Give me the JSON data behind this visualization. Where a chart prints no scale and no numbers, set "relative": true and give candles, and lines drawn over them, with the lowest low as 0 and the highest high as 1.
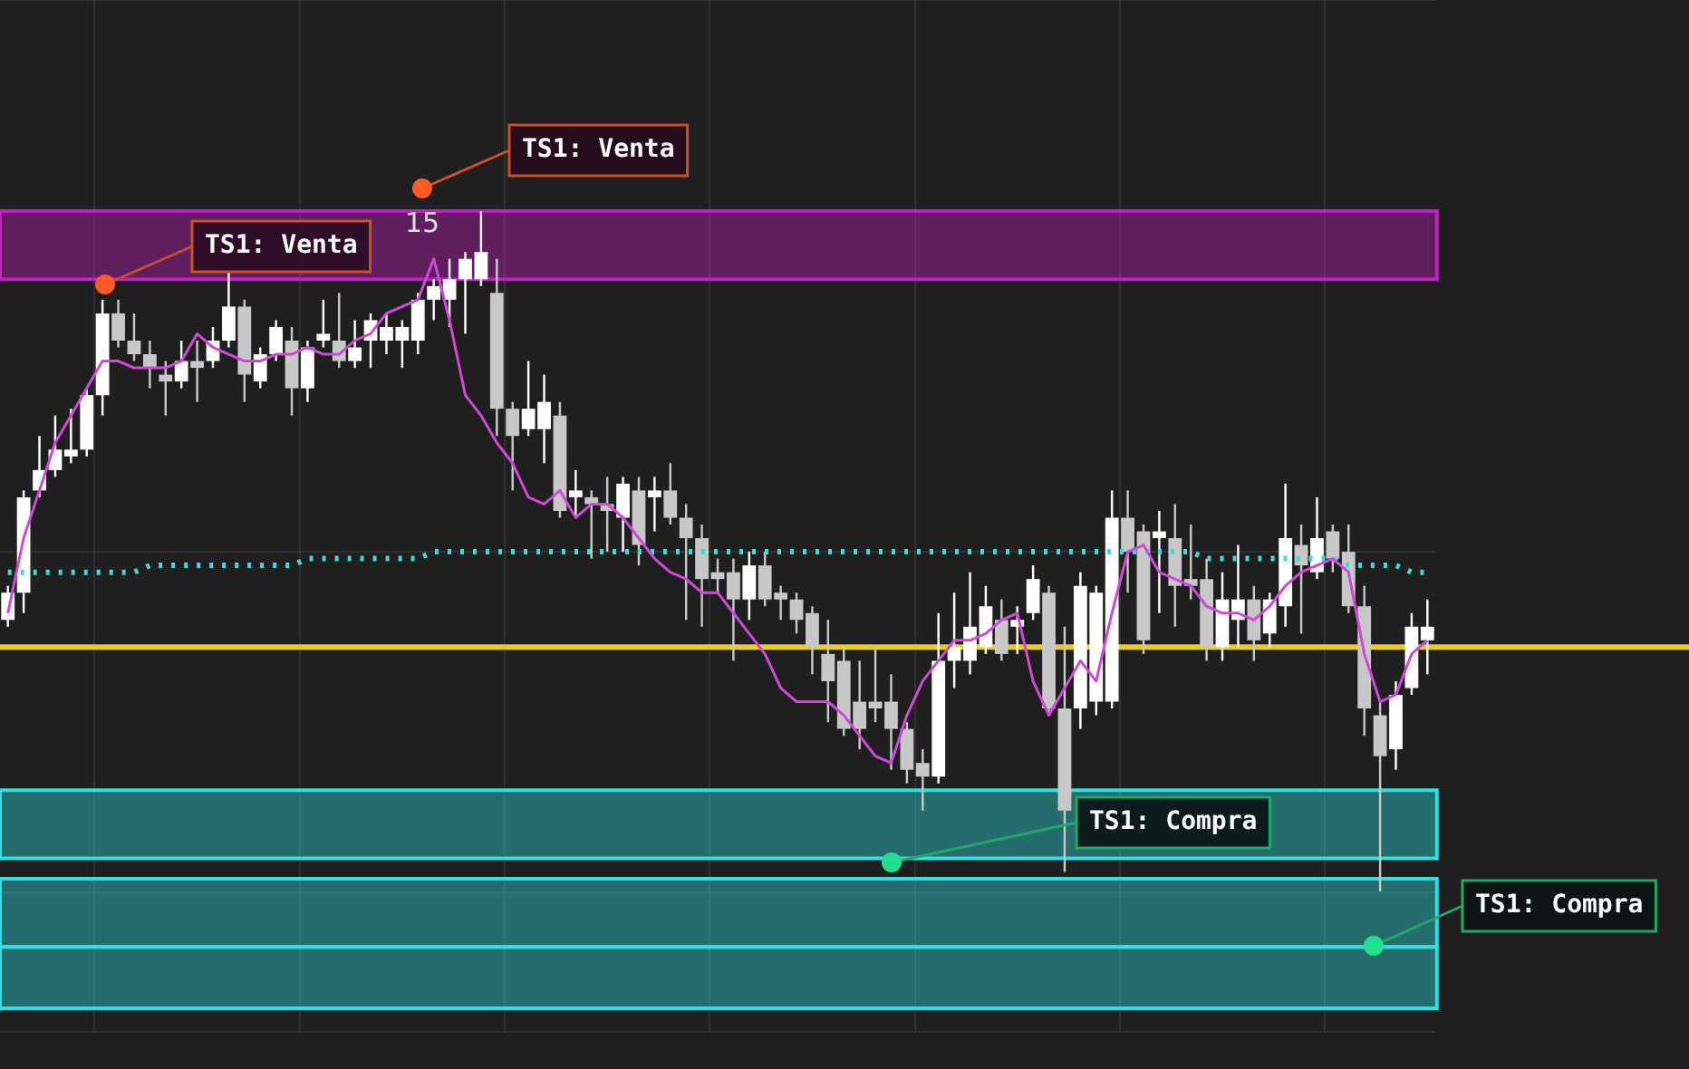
{
  "chart_data": {
    "type": "candlestick",
    "relative": true,
    "colors": [
      "#ffffff",
      "#ffffff",
      "#ffffff",
      "#ffffff",
      "#ffffff",
      "#ffffff",
      "#ffffff",
      "#c8c8c8",
      "#c8c8c8",
      "#c8c8c8",
      "#c8c8c8",
      "#ffffff",
      "#c8c8c8",
      "#ffffff",
      "#ffffff",
      "#c8c8c8",
      "#ffffff",
      "#ffffff",
      "#c8c8c8",
      "#ffffff",
      "#ffffff",
      "#c8c8c8",
      "#ffffff",
      "#ffffff",
      "#ffffff",
      "#ffffff",
      "#ffffff",
      "#ffffff",
      "#ffffff",
      "#ffffff",
      "#ffffff",
      "#c8c8c8",
      "#c8c8c8",
      "#ffffff",
      "#ffffff",
      "#c8c8c8",
      "#ffffff",
      "#c8c8c8",
      "#c8c8c8",
      "#ffffff",
      "#c8c8c8",
      "#ffffff",
      "#c8c8c8",
      "#c8c8c8",
      "#c8c8c8",
      "#c8c8c8",
      "#c8c8c8",
      "#ffffff",
      "#c8c8c8",
      "#c8c8c8",
      "#c8c8c8",
      "#c8c8c8",
      "#c8c8c8",
      "#c8c8c8",
      "#c8c8c8",
      "#c8c8c8",
      "#c8c8c8",
      "#c8c8c8",
      "#c8c8c8",
      "#ffffff",
      "#ffffff",
      "#ffffff",
      "#ffffff",
      "#c8c8c8",
      "#ffffff",
      "#ffffff",
      "#c8c8c8",
      "#c8c8c8",
      "#ffffff",
      "#ffffff",
      "#ffffff",
      "#c8c8c8",
      "#c8c8c8",
      "#ffffff",
      "#c8c8c8",
      "#c8c8c8",
      "#c8c8c8",
      "#ffffff",
      "#ffffff",
      "#c8c8c8",
      "#ffffff",
      "#ffffff",
      "#c8c8c8",
      "#ffffff",
      "#c8c8c8",
      "#c8c8c8",
      "#c8c8c8",
      "#c8c8c8",
      "#ffffff",
      "#ffffff",
      "#ffffff"
    ],
    "categories": [
      null,
      null,
      null,
      null,
      null,
      null,
      null,
      null,
      null,
      null,
      null,
      null,
      null,
      null,
      null,
      null,
      null,
      null,
      null,
      null,
      null,
      null,
      null,
      null,
      null,
      null,
      null,
      null,
      null,
      null,
      null,
      null,
      null,
      null,
      null,
      null,
      null,
      null,
      null,
      null,
      null,
      null,
      null,
      null,
      null,
      null,
      null,
      null,
      null,
      null,
      null,
      null,
      null,
      null,
      null,
      null,
      null,
      null,
      null,
      null,
      null,
      null,
      null,
      null,
      null,
      null,
      null,
      null,
      null,
      null,
      null,
      null,
      null,
      null,
      null,
      null,
      null,
      null,
      null,
      null,
      null,
      null,
      null,
      null,
      null,
      null,
      null,
      null,
      null,
      null,
      null
    ],
    "ohlc": [
      [
        0.4,
        0.45,
        0.39,
        0.44
      ],
      [
        0.44,
        0.59,
        0.41,
        0.58
      ],
      [
        0.59,
        0.67,
        0.58,
        0.62
      ],
      [
        0.62,
        0.7,
        0.61,
        0.65
      ],
      [
        0.64,
        0.71,
        0.63,
        0.65
      ],
      [
        0.65,
        0.74,
        0.64,
        0.73
      ],
      [
        0.73,
        0.87,
        0.7,
        0.85
      ],
      [
        0.85,
        0.87,
        0.8,
        0.81
      ],
      [
        0.81,
        0.85,
        0.78,
        0.79
      ],
      [
        0.79,
        0.81,
        0.74,
        0.77
      ],
      [
        0.76,
        0.78,
        0.7,
        0.75
      ],
      [
        0.75,
        0.81,
        0.74,
        0.78
      ],
      [
        0.78,
        0.81,
        0.72,
        0.77
      ],
      [
        0.78,
        0.83,
        0.77,
        0.81
      ],
      [
        0.81,
        0.91,
        0.8,
        0.86
      ],
      [
        0.86,
        0.87,
        0.72,
        0.76
      ],
      [
        0.75,
        0.8,
        0.74,
        0.79
      ],
      [
        0.79,
        0.84,
        0.78,
        0.83
      ],
      [
        0.81,
        0.83,
        0.7,
        0.74
      ],
      [
        0.74,
        0.81,
        0.72,
        0.8
      ],
      [
        0.81,
        0.87,
        0.8,
        0.82
      ],
      [
        0.81,
        0.88,
        0.77,
        0.78
      ],
      [
        0.78,
        0.84,
        0.77,
        0.8
      ],
      [
        0.81,
        0.85,
        0.77,
        0.84
      ],
      [
        0.81,
        0.85,
        0.79,
        0.83
      ],
      [
        0.81,
        0.84,
        0.77,
        0.83
      ],
      [
        0.81,
        0.88,
        0.79,
        0.87
      ],
      [
        0.87,
        0.9,
        0.84,
        0.89
      ],
      [
        0.87,
        0.93,
        0.83,
        0.9
      ],
      [
        0.9,
        0.94,
        0.82,
        0.93
      ],
      [
        0.9,
        1,
        0.89,
        0.94
      ],
      [
        0.88,
        0.93,
        0.67,
        0.71
      ],
      [
        0.71,
        0.72,
        0.59,
        0.67
      ],
      [
        0.68,
        0.78,
        0.67,
        0.71
      ],
      [
        0.68,
        0.76,
        0.63,
        0.72
      ],
      [
        0.7,
        0.72,
        0.55,
        0.56
      ],
      [
        0.58,
        0.62,
        0.55,
        0.59
      ],
      [
        0.58,
        0.59,
        0.49,
        0.57
      ],
      [
        0.57,
        0.61,
        0.5,
        0.56
      ],
      [
        0.55,
        0.61,
        0.5,
        0.6
      ],
      [
        0.59,
        0.61,
        0.48,
        0.51
      ],
      [
        0.58,
        0.61,
        0.53,
        0.59
      ],
      [
        0.59,
        0.63,
        0.54,
        0.55
      ],
      [
        0.55,
        0.57,
        0.4,
        0.52
      ],
      [
        0.52,
        0.54,
        0.39,
        0.46
      ],
      [
        0.47,
        0.49,
        0.44,
        0.46
      ],
      [
        0.47,
        0.49,
        0.34,
        0.43
      ],
      [
        0.43,
        0.5,
        0.4,
        0.48
      ],
      [
        0.48,
        0.5,
        0.42,
        0.43
      ],
      [
        0.44,
        0.45,
        0.4,
        0.43
      ],
      [
        0.43,
        0.44,
        0.38,
        0.4
      ],
      [
        0.41,
        0.42,
        0.32,
        0.36
      ],
      [
        0.35,
        0.4,
        0.25,
        0.31
      ],
      [
        0.34,
        0.36,
        0.23,
        0.24
      ],
      [
        0.28,
        0.34,
        0.21,
        0.24
      ],
      [
        0.28,
        0.36,
        0.25,
        0.27
      ],
      [
        0.28,
        0.32,
        0.18,
        0.24
      ],
      [
        0.24,
        0.25,
        0.16,
        0.18
      ],
      [
        0.19,
        0.21,
        0.12,
        0.17
      ],
      [
        0.17,
        0.41,
        0.16,
        0.34
      ],
      [
        0.34,
        0.44,
        0.3,
        0.36
      ],
      [
        0.34,
        0.47,
        0.32,
        0.39
      ],
      [
        0.36,
        0.45,
        0.35,
        0.42
      ],
      [
        0.4,
        0.43,
        0.34,
        0.35
      ],
      [
        0.39,
        0.42,
        0.35,
        0.4
      ],
      [
        0.41,
        0.48,
        0.4,
        0.46
      ],
      [
        0.44,
        0.45,
        0.26,
        0.27
      ],
      [
        0.27,
        0.39,
        0.03,
        0.12
      ],
      [
        0.27,
        0.47,
        0.24,
        0.45
      ],
      [
        0.28,
        0.45,
        0.26,
        0.44
      ],
      [
        0.28,
        0.59,
        0.27,
        0.55
      ],
      [
        0.55,
        0.59,
        0.44,
        0.5
      ],
      [
        0.53,
        0.54,
        0.35,
        0.37
      ],
      [
        0.52,
        0.56,
        0.41,
        0.53
      ],
      [
        0.52,
        0.57,
        0.39,
        0.45
      ],
      [
        0.46,
        0.54,
        0.43,
        0.45
      ],
      [
        0.46,
        0.49,
        0.34,
        0.36
      ],
      [
        0.36,
        0.47,
        0.34,
        0.43
      ],
      [
        0.4,
        0.51,
        0.36,
        0.43
      ],
      [
        0.43,
        0.45,
        0.34,
        0.37
      ],
      [
        0.38,
        0.44,
        0.36,
        0.43
      ],
      [
        0.42,
        0.6,
        0.39,
        0.52
      ],
      [
        0.51,
        0.54,
        0.38,
        0.48
      ],
      [
        0.47,
        0.58,
        0.46,
        0.52
      ],
      [
        0.53,
        0.54,
        0.47,
        0.49
      ],
      [
        0.5,
        0.54,
        0.41,
        0.42
      ],
      [
        0.42,
        0.45,
        0.23,
        0.27
      ],
      [
        0.26,
        0.28,
        0,
        0.2
      ],
      [
        0.21,
        0.31,
        0.18,
        0.29
      ],
      [
        0.3,
        0.41,
        0.29,
        0.39
      ],
      [
        0.37,
        0.43,
        0.32,
        0.39
      ]
    ],
    "series": [
      {
        "type": "line",
        "color": "#d048d8",
        "values": [
          0.41,
          0.52,
          0.59,
          0.66,
          0.7,
          0.74,
          0.78,
          0.78,
          0.77,
          0.77,
          0.77,
          0.78,
          0.82,
          0.8,
          0.79,
          0.78,
          0.78,
          0.79,
          0.79,
          0.8,
          0.79,
          0.79,
          0.81,
          0.82,
          0.85,
          0.86,
          0.87,
          0.93,
          0.84,
          0.73,
          0.7,
          0.66,
          0.63,
          0.58,
          0.57,
          0.59,
          0.55,
          0.57,
          0.57,
          0.55,
          0.52,
          0.49,
          0.47,
          0.46,
          0.44,
          0.44,
          0.41,
          0.38,
          0.35,
          0.3,
          0.28,
          0.28,
          0.28,
          0.26,
          0.23,
          0.2,
          0.19,
          0.26,
          0.31,
          0.34,
          0.37,
          0.37,
          0.38,
          0.4,
          0.41,
          0.31,
          0.26,
          0.3,
          0.34,
          0.31,
          0.41,
          0.5,
          0.51,
          0.47,
          0.46,
          0.45,
          0.42,
          0.41,
          0.41,
          0.4,
          0.42,
          0.45,
          0.47,
          0.48,
          0.49,
          0.47,
          0.35,
          0.28,
          0.29,
          0.35,
          0.37
        ]
      },
      {
        "type": "line",
        "color": "#3fd8e0",
        "line_style": "dotted",
        "values": [
          0.47,
          0.47,
          0.47,
          0.47,
          0.47,
          0.47,
          0.47,
          0.47,
          0.47,
          0.48,
          0.48,
          0.48,
          0.48,
          0.48,
          0.48,
          0.48,
          0.48,
          0.48,
          0.48,
          0.49,
          0.49,
          0.49,
          0.49,
          0.49,
          0.49,
          0.49,
          0.49,
          0.5,
          0.5,
          0.5,
          0.5,
          0.5,
          0.5,
          0.5,
          0.5,
          0.5,
          0.5,
          0.5,
          0.5,
          0.5,
          0.5,
          0.5,
          0.5,
          0.5,
          0.5,
          0.5,
          0.5,
          0.5,
          0.5,
          0.5,
          0.5,
          0.5,
          0.5,
          0.5,
          0.5,
          0.5,
          0.5,
          0.5,
          0.5,
          0.5,
          0.5,
          0.5,
          0.5,
          0.5,
          0.5,
          0.5,
          0.5,
          0.5,
          0.5,
          0.5,
          0.5,
          0.5,
          0.5,
          0.5,
          0.5,
          0.5,
          0.49,
          0.49,
          0.49,
          0.49,
          0.49,
          0.49,
          0.49,
          0.49,
          0.49,
          0.48,
          0.48,
          0.48,
          0.48,
          0.47,
          0.47
        ]
      }
    ],
    "ref_lines": [
      {
        "axis": "y",
        "value": 0.36,
        "color": "#e8cc20"
      }
    ],
    "bands": [
      {
        "axis": "y",
        "from": 0.9,
        "to": 1.0,
        "color": "#c020c0"
      },
      {
        "axis": "y",
        "from": 0.05,
        "to": 0.15,
        "color": "#30e0e0"
      },
      {
        "axis": "y",
        "from": -0.08,
        "to": 0.02,
        "color": "#30e0e0"
      },
      {
        "axis": "y",
        "from": -0.17,
        "to": -0.08,
        "color": "#30e0e0"
      }
    ],
    "annotations": [
      "TS1: Venta",
      "TS1: Venta",
      "TS1: Compra",
      "TS1: Compra",
      "15"
    ],
    "grid": true,
    "legend": false,
    "marker": "none"
  }
}
